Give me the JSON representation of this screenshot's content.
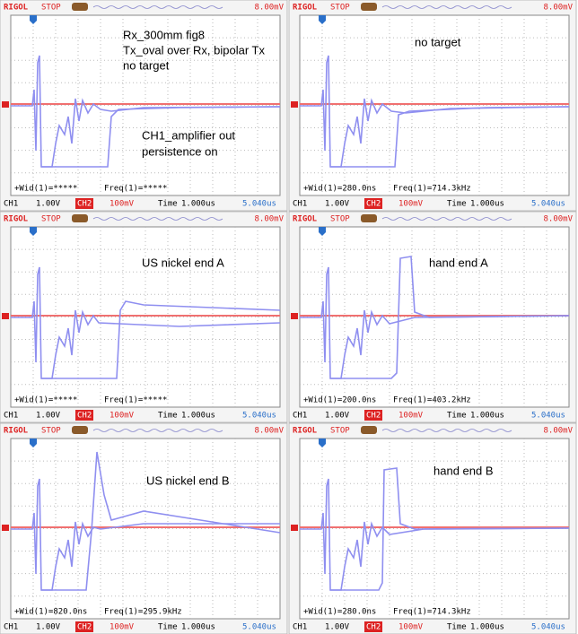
{
  "panels": [
    {
      "header": {
        "brand": "RIGOL",
        "status": "STOP",
        "trigger_level": "8.00mV"
      },
      "notes": [
        "Rx_300mm fig8",
        "Tx_oval over Rx, bipolar Tx",
        "no target",
        "CH1_amplifier out",
        "persistence on"
      ],
      "measurements": {
        "width": "+Wid(1)=*****",
        "freq": "Freq(1)=*****"
      },
      "footer": {
        "ch1": "CH1",
        "ch1_scale": "1.00V",
        "ch2": "CH2",
        "ch2_scale": "100mV",
        "time_label": "Time",
        "time_scale": "1.000us",
        "offset": "5.040us"
      }
    },
    {
      "header": {
        "brand": "RIGOL",
        "status": "STOP",
        "trigger_level": "8.00mV"
      },
      "notes": [
        "no target"
      ],
      "measurements": {
        "width": "+Wid(1)=280.0ns",
        "freq": "Freq(1)=714.3kHz"
      },
      "footer": {
        "ch1": "CH1",
        "ch1_scale": "1.00V",
        "ch2": "CH2",
        "ch2_scale": "100mV",
        "time_label": "Time",
        "time_scale": "1.000us",
        "offset": "5.040us"
      }
    },
    {
      "header": {
        "brand": "RIGOL",
        "status": "STOP",
        "trigger_level": "8.00mV"
      },
      "notes": [
        "US nickel end A"
      ],
      "measurements": {
        "width": "+Wid(1)=*****",
        "freq": "Freq(1)=*****"
      },
      "footer": {
        "ch1": "CH1",
        "ch1_scale": "1.00V",
        "ch2": "CH2",
        "ch2_scale": "100mV",
        "time_label": "Time",
        "time_scale": "1.000us",
        "offset": "5.040us"
      }
    },
    {
      "header": {
        "brand": "RIGOL",
        "status": "STOP",
        "trigger_level": "8.00mV"
      },
      "notes": [
        "hand end A"
      ],
      "measurements": {
        "width": "+Wid(1)=200.0ns",
        "freq": "Freq(1)=403.2kHz"
      },
      "footer": {
        "ch1": "CH1",
        "ch1_scale": "1.00V",
        "ch2": "CH2",
        "ch2_scale": "100mV",
        "time_label": "Time",
        "time_scale": "1.000us",
        "offset": "5.040us"
      }
    },
    {
      "header": {
        "brand": "RIGOL",
        "status": "STOP",
        "trigger_level": "8.00mV"
      },
      "notes": [
        "US nickel end B"
      ],
      "measurements": {
        "width": "+Wid(1)=820.0ns",
        "freq": "Freq(1)=295.9kHz"
      },
      "footer": {
        "ch1": "CH1",
        "ch1_scale": "1.00V",
        "ch2": "CH2",
        "ch2_scale": "100mV",
        "time_label": "Time",
        "time_scale": "1.000us",
        "offset": "5.040us"
      }
    },
    {
      "header": {
        "brand": "RIGOL",
        "status": "STOP",
        "trigger_level": "8.00mV"
      },
      "notes": [
        "hand end B"
      ],
      "measurements": {
        "width": "+Wid(1)=280.0ns",
        "freq": "Freq(1)=714.3kHz"
      },
      "footer": {
        "ch1": "CH1",
        "ch1_scale": "1.00V",
        "ch2": "CH2",
        "ch2_scale": "100mV",
        "time_label": "Time",
        "time_scale": "1.000us",
        "offset": "5.040us"
      }
    }
  ]
}
